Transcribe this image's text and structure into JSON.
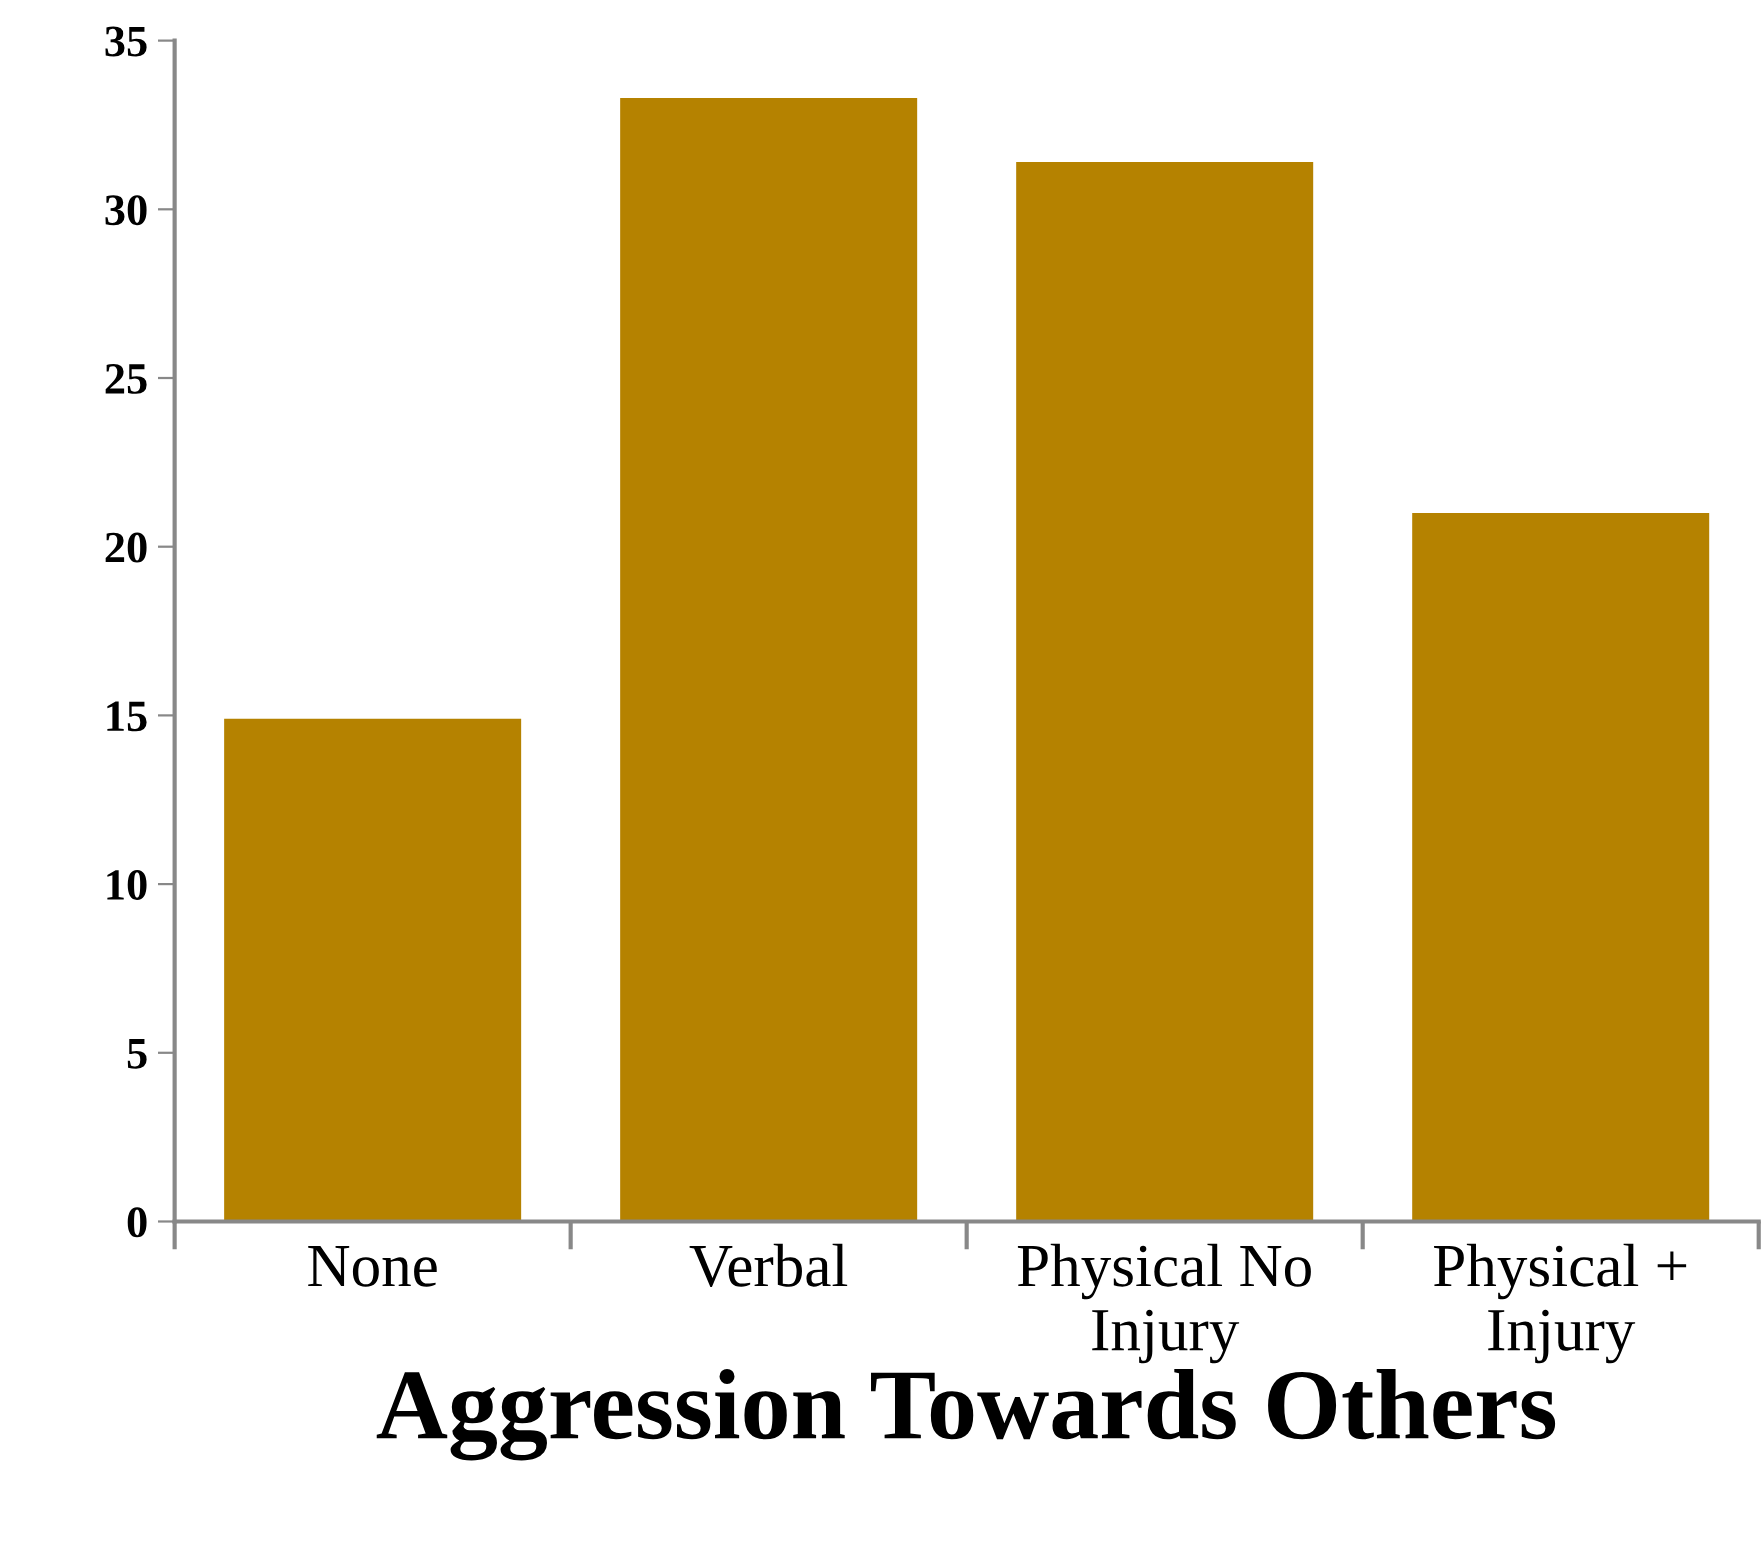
{
  "chart_data": {
    "type": "bar",
    "xlabel": "Aggression Towards Others",
    "categories": [
      "None",
      "Verbal",
      "Physical No\nInjury",
      "Physical +\nInjury"
    ],
    "values": [
      14.9,
      33.3,
      31.4,
      21.0
    ],
    "color": "#b58200",
    "ylim": [
      0,
      35
    ],
    "yticks": [
      0,
      5,
      10,
      15,
      20,
      25,
      30,
      35
    ],
    "grid": false
  }
}
